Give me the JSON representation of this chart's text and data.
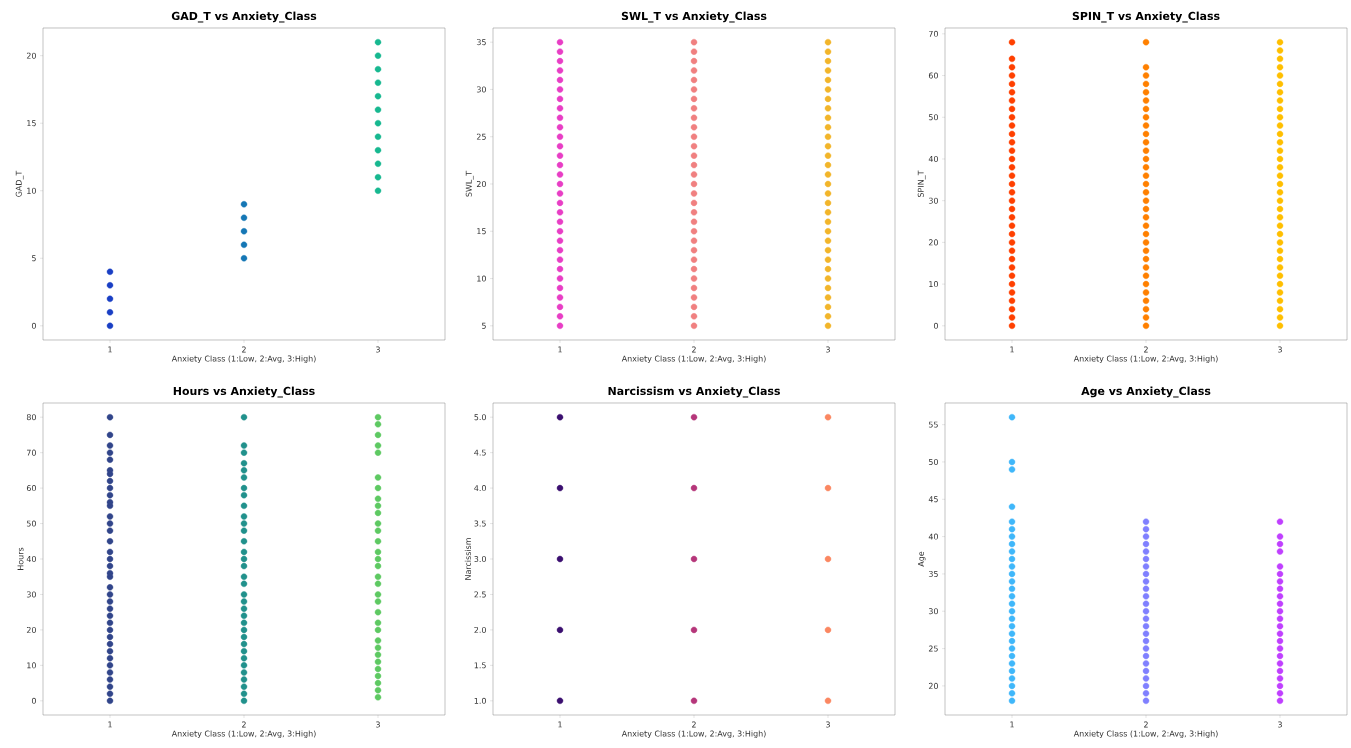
{
  "chart_data": [
    {
      "type": "scatter",
      "title": "GAD_T vs Anxiety_Class",
      "xlabel": "Anxiety Class (1:Low, 2:Avg, 3:High)",
      "ylabel": "GAD_T",
      "categories": [
        "1",
        "2",
        "3"
      ],
      "ylim": [
        -1.05,
        22.05
      ],
      "yticks": [
        0,
        5,
        10,
        15,
        20
      ],
      "marker": "circle",
      "series": [
        {
          "color": "#1a3fc4",
          "x": [
            "1",
            "1",
            "1",
            "1",
            "1"
          ],
          "values": [
            0,
            1,
            2,
            3,
            4
          ]
        },
        {
          "color": "#1577b5",
          "x": [
            "2",
            "2",
            "2",
            "2",
            "2"
          ],
          "values": [
            5,
            6,
            7,
            8,
            9
          ]
        },
        {
          "color": "#17b890",
          "x": [
            "3",
            "3",
            "3",
            "3",
            "3",
            "3",
            "3",
            "3",
            "3",
            "3",
            "3",
            "3"
          ],
          "values": [
            10,
            11,
            12,
            13,
            14,
            15,
            16,
            17,
            18,
            19,
            20,
            21
          ]
        }
      ]
    },
    {
      "type": "scatter",
      "title": "SWL_T vs Anxiety_Class",
      "xlabel": "Anxiety Class (1:Low, 2:Avg, 3:High)",
      "ylabel": "SWL_T",
      "categories": [
        "1",
        "2",
        "3"
      ],
      "ylim": [
        3.5,
        36.5
      ],
      "yticks": [
        5,
        10,
        15,
        20,
        25,
        30,
        35
      ],
      "marker": "circle",
      "series": [
        {
          "color": "#e83ec5",
          "x": [
            "1",
            "1",
            "1",
            "1",
            "1",
            "1",
            "1",
            "1",
            "1",
            "1",
            "1",
            "1",
            "1",
            "1",
            "1",
            "1",
            "1",
            "1",
            "1",
            "1",
            "1",
            "1",
            "1",
            "1",
            "1",
            "1",
            "1",
            "1",
            "1",
            "1",
            "1"
          ],
          "values": [
            5,
            6,
            7,
            8,
            9,
            10,
            11,
            12,
            13,
            14,
            15,
            16,
            17,
            18,
            19,
            20,
            21,
            22,
            23,
            24,
            25,
            26,
            27,
            28,
            29,
            30,
            31,
            32,
            33,
            34,
            35
          ]
        },
        {
          "color": "#f08080",
          "x": [
            "2",
            "2",
            "2",
            "2",
            "2",
            "2",
            "2",
            "2",
            "2",
            "2",
            "2",
            "2",
            "2",
            "2",
            "2",
            "2",
            "2",
            "2",
            "2",
            "2",
            "2",
            "2",
            "2",
            "2",
            "2",
            "2",
            "2",
            "2",
            "2",
            "2",
            "2"
          ],
          "values": [
            5,
            6,
            7,
            8,
            9,
            10,
            11,
            12,
            13,
            14,
            15,
            16,
            17,
            18,
            19,
            20,
            21,
            22,
            23,
            24,
            25,
            26,
            27,
            28,
            29,
            30,
            31,
            32,
            33,
            34,
            35
          ]
        },
        {
          "color": "#f2b52a",
          "x": [
            "3",
            "3",
            "3",
            "3",
            "3",
            "3",
            "3",
            "3",
            "3",
            "3",
            "3",
            "3",
            "3",
            "3",
            "3",
            "3",
            "3",
            "3",
            "3",
            "3",
            "3",
            "3",
            "3",
            "3",
            "3",
            "3",
            "3",
            "3",
            "3",
            "3",
            "3"
          ],
          "values": [
            5,
            6,
            7,
            8,
            9,
            10,
            11,
            12,
            13,
            14,
            15,
            16,
            17,
            18,
            19,
            20,
            21,
            22,
            23,
            24,
            25,
            26,
            27,
            28,
            29,
            30,
            31,
            32,
            33,
            34,
            35
          ]
        }
      ]
    },
    {
      "type": "scatter",
      "title": "SPIN_T vs Anxiety_Class",
      "xlabel": "Anxiety Class (1:Low, 2:Avg, 3:High)",
      "ylabel": "SPIN_T",
      "categories": [
        "1",
        "2",
        "3"
      ],
      "ylim": [
        -3.4,
        71.4
      ],
      "yticks": [
        0,
        10,
        20,
        30,
        40,
        50,
        60,
        70
      ],
      "marker": "circle",
      "series": [
        {
          "color": "#ff4000",
          "x": [
            "1",
            "1",
            "1",
            "1",
            "1",
            "1",
            "1",
            "1",
            "1",
            "1",
            "1",
            "1",
            "1",
            "1",
            "1",
            "1",
            "1",
            "1",
            "1",
            "1",
            "1",
            "1",
            "1",
            "1",
            "1",
            "1",
            "1",
            "1",
            "1",
            "1",
            "1",
            "1",
            "1",
            "1"
          ],
          "values": [
            0,
            2,
            4,
            6,
            8,
            10,
            12,
            14,
            16,
            18,
            20,
            22,
            24,
            26,
            28,
            30,
            32,
            34,
            36,
            38,
            40,
            42,
            44,
            46,
            48,
            50,
            52,
            54,
            56,
            58,
            60,
            62,
            64,
            68
          ]
        },
        {
          "color": "#ff8000",
          "x": [
            "2",
            "2",
            "2",
            "2",
            "2",
            "2",
            "2",
            "2",
            "2",
            "2",
            "2",
            "2",
            "2",
            "2",
            "2",
            "2",
            "2",
            "2",
            "2",
            "2",
            "2",
            "2",
            "2",
            "2",
            "2",
            "2",
            "2",
            "2",
            "2",
            "2",
            "2",
            "2",
            "2"
          ],
          "values": [
            0,
            2,
            4,
            6,
            8,
            10,
            12,
            14,
            16,
            18,
            20,
            22,
            24,
            26,
            28,
            30,
            32,
            34,
            36,
            38,
            40,
            42,
            44,
            46,
            48,
            50,
            52,
            54,
            56,
            58,
            60,
            62,
            68
          ]
        },
        {
          "color": "#ffbf00",
          "x": [
            "3",
            "3",
            "3",
            "3",
            "3",
            "3",
            "3",
            "3",
            "3",
            "3",
            "3",
            "3",
            "3",
            "3",
            "3",
            "3",
            "3",
            "3",
            "3",
            "3",
            "3",
            "3",
            "3",
            "3",
            "3",
            "3",
            "3",
            "3",
            "3",
            "3",
            "3",
            "3",
            "3",
            "3",
            "3"
          ],
          "values": [
            0,
            2,
            4,
            6,
            8,
            10,
            12,
            14,
            16,
            18,
            20,
            22,
            24,
            26,
            28,
            30,
            32,
            34,
            36,
            38,
            40,
            42,
            44,
            46,
            48,
            50,
            52,
            54,
            56,
            58,
            60,
            62,
            64,
            66,
            68
          ]
        }
      ]
    },
    {
      "type": "scatter",
      "title": "Hours vs Anxiety_Class",
      "xlabel": "Anxiety Class (1:Low, 2:Avg, 3:High)",
      "ylabel": "Hours",
      "categories": [
        "1",
        "2",
        "3"
      ],
      "ylim": [
        -4,
        84
      ],
      "yticks": [
        0,
        10,
        20,
        30,
        40,
        50,
        60,
        70,
        80
      ],
      "marker": "circle",
      "series": [
        {
          "color": "#31458a",
          "x": [
            "1",
            "1",
            "1",
            "1",
            "1",
            "1",
            "1",
            "1",
            "1",
            "1",
            "1",
            "1",
            "1",
            "1",
            "1",
            "1",
            "1",
            "1",
            "1",
            "1",
            "1",
            "1",
            "1",
            "1",
            "1",
            "1",
            "1",
            "1",
            "1",
            "1",
            "1",
            "1",
            "1",
            "1",
            "1",
            "1",
            "1",
            "1"
          ],
          "values": [
            0,
            2,
            4,
            6,
            8,
            10,
            12,
            14,
            16,
            18,
            20,
            22,
            24,
            26,
            28,
            30,
            32,
            35,
            36,
            38,
            40,
            42,
            45,
            48,
            50,
            52,
            55,
            56,
            58,
            60,
            62,
            64,
            65,
            68,
            70,
            72,
            75,
            80
          ]
        },
        {
          "color": "#21918c",
          "x": [
            "2",
            "2",
            "2",
            "2",
            "2",
            "2",
            "2",
            "2",
            "2",
            "2",
            "2",
            "2",
            "2",
            "2",
            "2",
            "2",
            "2",
            "2",
            "2",
            "2",
            "2",
            "2",
            "2",
            "2",
            "2",
            "2",
            "2",
            "2",
            "2",
            "2",
            "2",
            "2",
            "2",
            "2"
          ],
          "values": [
            0,
            2,
            4,
            6,
            8,
            10,
            12,
            14,
            16,
            18,
            20,
            22,
            24,
            26,
            28,
            30,
            33,
            35,
            38,
            40,
            42,
            45,
            48,
            50,
            52,
            55,
            58,
            60,
            63,
            65,
            67,
            70,
            72,
            80
          ]
        },
        {
          "color": "#5ec962",
          "x": [
            "3",
            "3",
            "3",
            "3",
            "3",
            "3",
            "3",
            "3",
            "3",
            "3",
            "3",
            "3",
            "3",
            "3",
            "3",
            "3",
            "3",
            "3",
            "3",
            "3",
            "3",
            "3",
            "3",
            "3",
            "3",
            "3",
            "3",
            "3",
            "3",
            "3",
            "3",
            "3"
          ],
          "values": [
            1,
            3,
            5,
            7,
            9,
            11,
            13,
            15,
            17,
            20,
            22,
            25,
            28,
            30,
            33,
            35,
            38,
            40,
            42,
            45,
            48,
            50,
            53,
            55,
            57,
            60,
            63,
            70,
            72,
            75,
            78,
            80
          ]
        }
      ]
    },
    {
      "type": "scatter",
      "title": "Narcissism vs Anxiety_Class",
      "xlabel": "Anxiety Class (1:Low, 2:Avg, 3:High)",
      "ylabel": "Narcissism",
      "categories": [
        "1",
        "2",
        "3"
      ],
      "ylim": [
        0.8,
        5.2
      ],
      "yticks": [
        {
          "value": 1,
          "label": "1.0"
        },
        {
          "value": 1.5,
          "label": "1.5"
        },
        {
          "value": 2,
          "label": "2.0"
        },
        {
          "value": 2.5,
          "label": "2.5"
        },
        {
          "value": 3,
          "label": "3.0"
        },
        {
          "value": 3.5,
          "label": "3.5"
        },
        {
          "value": 4,
          "label": "4.0"
        },
        {
          "value": 4.5,
          "label": "4.5"
        },
        {
          "value": 5,
          "label": "5.0"
        }
      ],
      "marker": "circle",
      "series": [
        {
          "color": "#3b0f70",
          "x": [
            "1",
            "1",
            "1",
            "1",
            "1"
          ],
          "values": [
            1,
            2,
            3,
            4,
            5
          ]
        },
        {
          "color": "#b5367a",
          "x": [
            "2",
            "2",
            "2",
            "2",
            "2"
          ],
          "values": [
            1,
            2,
            3,
            4,
            5
          ]
        },
        {
          "color": "#fb8761",
          "x": [
            "3",
            "3",
            "3",
            "3",
            "3"
          ],
          "values": [
            1,
            2,
            3,
            4,
            5
          ]
        }
      ]
    },
    {
      "type": "scatter",
      "title": "Age vs Anxiety_Class",
      "xlabel": "Anxiety Class (1:Low, 2:Avg, 3:High)",
      "ylabel": "Age",
      "categories": [
        "1",
        "2",
        "3"
      ],
      "ylim": [
        16.1,
        57.9
      ],
      "yticks": [
        20,
        25,
        30,
        35,
        40,
        45,
        50,
        55
      ],
      "marker": "circle",
      "series": [
        {
          "color": "#3fb7fa",
          "x": [
            "1",
            "1",
            "1",
            "1",
            "1",
            "1",
            "1",
            "1",
            "1",
            "1",
            "1",
            "1",
            "1",
            "1",
            "1",
            "1",
            "1",
            "1",
            "1",
            "1",
            "1",
            "1",
            "1",
            "1",
            "1",
            "1",
            "1",
            "1",
            "1"
          ],
          "values": [
            18,
            19,
            20,
            21,
            22,
            23,
            24,
            25,
            26,
            27,
            28,
            29,
            30,
            31,
            32,
            33,
            34,
            35,
            36,
            37,
            38,
            39,
            40,
            41,
            42,
            44,
            49,
            50,
            56
          ]
        },
        {
          "color": "#8080ff",
          "x": [
            "2",
            "2",
            "2",
            "2",
            "2",
            "2",
            "2",
            "2",
            "2",
            "2",
            "2",
            "2",
            "2",
            "2",
            "2",
            "2",
            "2",
            "2",
            "2",
            "2",
            "2",
            "2",
            "2",
            "2",
            "2"
          ],
          "values": [
            18,
            19,
            20,
            21,
            22,
            23,
            24,
            25,
            26,
            27,
            28,
            29,
            30,
            31,
            32,
            33,
            34,
            35,
            36,
            37,
            38,
            39,
            40,
            41,
            42
          ]
        },
        {
          "color": "#c040ff",
          "x": [
            "3",
            "3",
            "3",
            "3",
            "3",
            "3",
            "3",
            "3",
            "3",
            "3",
            "3",
            "3",
            "3",
            "3",
            "3",
            "3",
            "3",
            "3",
            "3",
            "3",
            "3",
            "3",
            "3"
          ],
          "values": [
            18,
            19,
            20,
            21,
            22,
            23,
            24,
            25,
            26,
            27,
            28,
            29,
            30,
            31,
            32,
            33,
            34,
            35,
            36,
            38,
            39,
            40,
            42
          ]
        }
      ]
    }
  ]
}
